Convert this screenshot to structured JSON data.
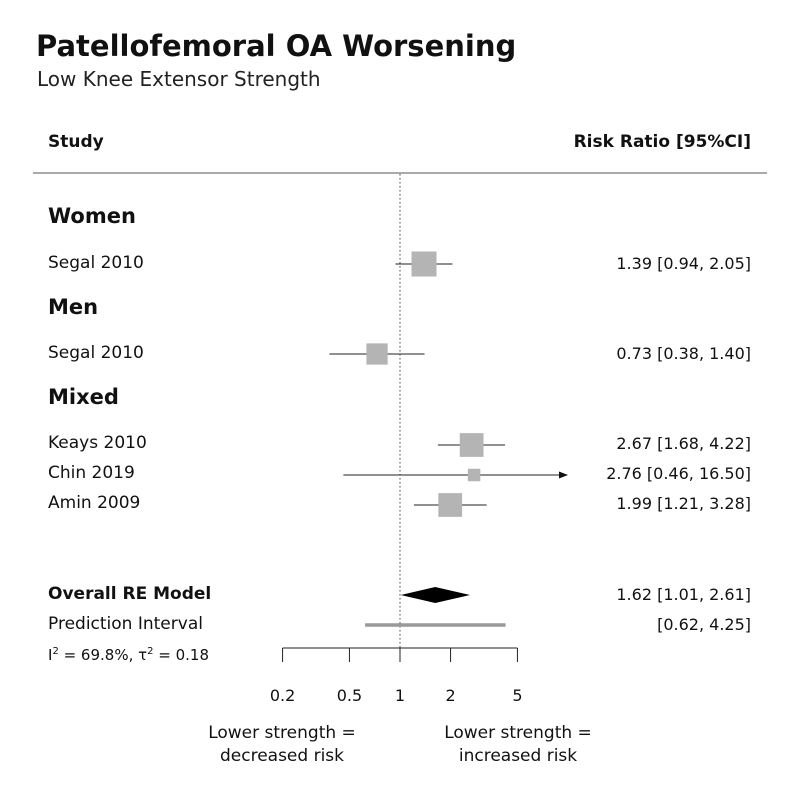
{
  "title": "Patellofemoral OA Worsening",
  "subtitle": "Low Knee Extensor Strength",
  "headers": {
    "study": "Study",
    "estimate": "Risk Ratio [95%CI]"
  },
  "groups": {
    "women": "Women",
    "men": "Men",
    "mixed": "Mixed"
  },
  "rows": [
    {
      "study": "Segal 2010",
      "label": "1.39 [0.94,  2.05]"
    },
    {
      "study": "Segal 2010",
      "label": "0.73 [0.38,  1.40]"
    },
    {
      "study": "Keays 2010",
      "label": "2.67 [1.68,  4.22]"
    },
    {
      "study": "Chin 2019",
      "label": "2.76 [0.46, 16.50]"
    },
    {
      "study": "Amin 2009",
      "label": "1.99 [1.21,  3.28]"
    }
  ],
  "overall": {
    "label": "Overall RE Model",
    "estimate_label": "1.62 [1.01, 2.61]",
    "pi_label": "Prediction Interval",
    "pi_estimate_label": "[0.62, 4.25]",
    "heterogeneity_i": "I",
    "heterogeneity_i_sup": "2",
    "heterogeneity_mid": " = 69.8%, τ",
    "heterogeneity_tau_sup": "2",
    "heterogeneity_end": " = 0.18"
  },
  "captions": {
    "left": [
      "Lower strength =",
      "decreased risk"
    ],
    "right": [
      "Lower strength =",
      "increased risk"
    ]
  },
  "colors": {
    "square": "#b4b4b4",
    "diamond": "#000000",
    "pi_bar": "#999999"
  },
  "chart_data": {
    "type": "forest",
    "x_scale": "log",
    "xlim": [
      0.2,
      5
    ],
    "x_ticks": [
      0.2,
      0.5,
      1,
      2,
      5
    ],
    "x_tick_labels": [
      "0.2",
      "0.5",
      "1",
      "2",
      "5"
    ],
    "reference_line": 1,
    "studies": [
      {
        "group": "Women",
        "study": "Segal 2010",
        "rr": 1.39,
        "lower": 0.94,
        "upper": 2.05,
        "weight_rel": 1.0
      },
      {
        "group": "Men",
        "study": "Segal 2010",
        "rr": 0.73,
        "lower": 0.38,
        "upper": 1.4,
        "weight_rel": 0.85
      },
      {
        "group": "Mixed",
        "study": "Keays 2010",
        "rr": 2.67,
        "lower": 1.68,
        "upper": 4.22,
        "weight_rel": 0.95
      },
      {
        "group": "Mixed",
        "study": "Chin 2019",
        "rr": 2.76,
        "lower": 0.46,
        "upper": 16.5,
        "weight_rel": 0.5
      },
      {
        "group": "Mixed",
        "study": "Amin 2009",
        "rr": 1.99,
        "lower": 1.21,
        "upper": 3.28,
        "weight_rel": 0.95
      }
    ],
    "overall": {
      "rr": 1.62,
      "lower": 1.01,
      "upper": 2.61,
      "pi_lower": 0.62,
      "pi_upper": 4.25
    }
  }
}
